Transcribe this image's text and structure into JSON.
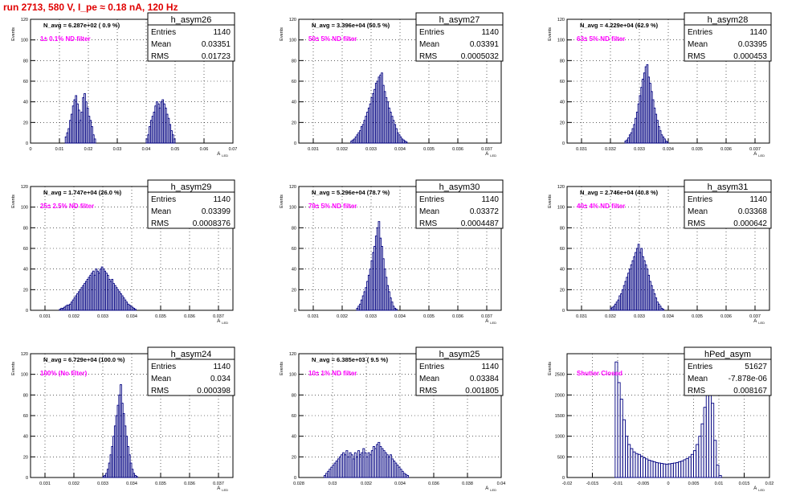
{
  "page": {
    "title": "run 2713,   580 V, I_pe ≈ 0.18 nA, 120 Hz"
  },
  "labels": {
    "y_axis": "Events",
    "x_axis": "A",
    "x_axis_sub": "LED"
  },
  "colors": {
    "histogram": "#000080",
    "annotation": "#ff00ff",
    "title": "#e00000",
    "grid": "#000000"
  },
  "chart_data": [
    {
      "type": "bar",
      "name": "h_asym26",
      "navg": "N_avg = 6.287e+02 ( 0.9 %)",
      "note": "1± 0.1% ND filter",
      "stats": {
        "entries": "1140",
        "mean": "0.03351",
        "rms": "0.01723"
      },
      "xlim": [
        0,
        0.07
      ],
      "ylim": [
        0,
        120
      ],
      "xticks": [
        "0",
        "0.01",
        "0.02",
        "0.03",
        "0.04",
        "0.05",
        "0.06",
        "0.07"
      ],
      "yticks": [
        "0",
        "20",
        "40",
        "60",
        "80",
        "100",
        "120"
      ],
      "grid": true,
      "x_start": 0.012,
      "bin_width": 0.0005,
      "values": [
        6,
        10,
        14,
        22,
        28,
        36,
        42,
        46,
        38,
        32,
        22,
        30,
        44,
        48,
        40,
        34,
        26,
        22,
        16,
        8,
        4,
        0,
        0,
        0,
        0,
        0,
        0,
        0,
        0,
        0,
        0,
        0,
        0,
        0,
        0,
        0,
        0,
        0,
        0,
        0,
        0,
        0,
        0,
        0,
        0,
        0,
        0,
        0,
        0,
        0,
        0,
        0,
        0,
        0,
        0,
        0,
        4,
        8,
        16,
        22,
        26,
        30,
        36,
        40,
        38,
        34,
        40,
        42,
        38,
        34,
        28,
        24,
        18,
        12,
        8,
        4
      ]
    },
    {
      "type": "bar",
      "name": "h_asym27",
      "navg": "N_avg = 3.396e+04 (50.5 %)",
      "note": "50± 5% ND filter",
      "stats": {
        "entries": "1140",
        "mean": "0.03391",
        "rms": "0.0005032"
      },
      "xlim": [
        0.0305,
        0.0375
      ],
      "ylim": [
        0,
        120
      ],
      "xticks": [
        "0.031",
        "0.032",
        "0.033",
        "0.034",
        "0.035",
        "0.036",
        "0.037"
      ],
      "yticks": [
        "0",
        "20",
        "40",
        "60",
        "80",
        "100",
        "120"
      ],
      "grid": true,
      "x_start": 0.0323,
      "bin_width": 5e-05,
      "values": [
        2,
        3,
        4,
        6,
        8,
        10,
        12,
        16,
        18,
        22,
        26,
        30,
        34,
        38,
        44,
        48,
        52,
        58,
        60,
        64,
        66,
        68,
        56,
        50,
        44,
        40,
        34,
        30,
        26,
        22,
        18,
        14,
        10,
        8,
        6,
        4,
        3,
        2,
        1
      ]
    },
    {
      "type": "bar",
      "name": "h_asym28",
      "navg": "N_avg = 4.229e+04 (62.9 %)",
      "note": "63± 5% ND filter",
      "stats": {
        "entries": "1140",
        "mean": "0.03395",
        "rms": "0.000453"
      },
      "xlim": [
        0.0305,
        0.0375
      ],
      "ylim": [
        0,
        120
      ],
      "xticks": [
        "0.031",
        "0.032",
        "0.033",
        "0.034",
        "0.035",
        "0.036",
        "0.037"
      ],
      "yticks": [
        "0",
        "20",
        "40",
        "60",
        "80",
        "100",
        "120"
      ],
      "grid": true,
      "x_start": 0.0325,
      "bin_width": 5e-05,
      "values": [
        2,
        3,
        5,
        8,
        10,
        14,
        18,
        24,
        30,
        38,
        46,
        54,
        62,
        68,
        74,
        76,
        64,
        58,
        50,
        42,
        34,
        28,
        22,
        16,
        12,
        8,
        6,
        4,
        2,
        1
      ]
    },
    {
      "type": "bar",
      "name": "h_asym29",
      "navg": "N_avg = 1.747e+04 (26.0 %)",
      "note": "25± 2.5% ND filter",
      "stats": {
        "entries": "1140",
        "mean": "0.03399",
        "rms": "0.0008376"
      },
      "xlim": [
        0.0305,
        0.0375
      ],
      "ylim": [
        0,
        120
      ],
      "xticks": [
        "0.031",
        "0.032",
        "0.033",
        "0.034",
        "0.035",
        "0.036",
        "0.037"
      ],
      "yticks": [
        "0",
        "20",
        "40",
        "60",
        "80",
        "100",
        "120"
      ],
      "grid": true,
      "x_start": 0.0315,
      "bin_width": 5e-05,
      "values": [
        1,
        2,
        2,
        3,
        4,
        5,
        5,
        6,
        8,
        10,
        12,
        14,
        16,
        18,
        20,
        22,
        24,
        26,
        28,
        30,
        32,
        34,
        36,
        38,
        34,
        40,
        38,
        36,
        40,
        42,
        40,
        38,
        36,
        34,
        30,
        28,
        30,
        26,
        24,
        22,
        20,
        18,
        16,
        14,
        12,
        10,
        8,
        6,
        5,
        4,
        3,
        2,
        1
      ]
    },
    {
      "type": "bar",
      "name": "h_asym30",
      "navg": "N_avg = 5.296e+04 (78.7 %)",
      "note": "79± 5% ND filter",
      "stats": {
        "entries": "1140",
        "mean": "0.03372",
        "rms": "0.0004487"
      },
      "xlim": [
        0.0305,
        0.0375
      ],
      "ylim": [
        0,
        120
      ],
      "xticks": [
        "0.031",
        "0.032",
        "0.033",
        "0.034",
        "0.035",
        "0.036",
        "0.037"
      ],
      "yticks": [
        "0",
        "20",
        "40",
        "60",
        "80",
        "100",
        "120"
      ],
      "grid": true,
      "x_start": 0.0325,
      "bin_width": 5e-05,
      "values": [
        2,
        4,
        6,
        10,
        14,
        18,
        22,
        28,
        34,
        40,
        48,
        56,
        62,
        72,
        80,
        86,
        70,
        62,
        50,
        40,
        32,
        24,
        18,
        12,
        8,
        4,
        2,
        1
      ]
    },
    {
      "type": "bar",
      "name": "h_asym31",
      "navg": "N_avg = 2.746e+04 (40.8 %)",
      "note": "40± 4% ND filter",
      "stats": {
        "entries": "1140",
        "mean": "0.03368",
        "rms": "0.000642"
      },
      "xlim": [
        0.0305,
        0.0375
      ],
      "ylim": [
        0,
        120
      ],
      "xticks": [
        "0.031",
        "0.032",
        "0.033",
        "0.034",
        "0.035",
        "0.036",
        "0.037"
      ],
      "yticks": [
        "0",
        "20",
        "40",
        "60",
        "80",
        "100",
        "120"
      ],
      "grid": true,
      "x_start": 0.032,
      "bin_width": 5e-05,
      "values": [
        2,
        3,
        4,
        6,
        8,
        10,
        14,
        16,
        20,
        24,
        28,
        32,
        36,
        40,
        44,
        48,
        52,
        56,
        60,
        64,
        56,
        60,
        52,
        48,
        44,
        40,
        34,
        28,
        24,
        20,
        16,
        12,
        8,
        6,
        4,
        2,
        1
      ]
    },
    {
      "type": "bar",
      "name": "h_asym24",
      "navg": "N_avg = 6.729e+04 (100.0 %)",
      "note": "100% (No filter)",
      "stats": {
        "entries": "1140",
        "mean": "0.034",
        "rms": "0.000398"
      },
      "xlim": [
        0.0305,
        0.0375
      ],
      "ylim": [
        0,
        120
      ],
      "xticks": [
        "0.031",
        "0.032",
        "0.033",
        "0.034",
        "0.035",
        "0.036",
        "0.037"
      ],
      "yticks": [
        "0",
        "20",
        "40",
        "60",
        "80",
        "100",
        "120"
      ],
      "grid": true,
      "x_start": 0.033,
      "bin_width": 5e-05,
      "values": [
        1,
        2,
        4,
        8,
        14,
        22,
        30,
        40,
        50,
        60,
        70,
        80,
        90,
        72,
        62,
        50,
        40,
        30,
        22,
        14,
        8,
        4,
        2,
        1
      ]
    },
    {
      "type": "bar",
      "name": "h_asym25",
      "navg": "N_avg = 6.385e+03 ( 9.5 %)",
      "note": "10± 1% ND filter",
      "stats": {
        "entries": "1140",
        "mean": "0.03384",
        "rms": "0.001805"
      },
      "xlim": [
        0.028,
        0.04
      ],
      "ylim": [
        0,
        120
      ],
      "xticks": [
        "0.028",
        "0.03",
        "0.032",
        "0.034",
        "0.036",
        "0.038",
        "0.04"
      ],
      "yticks": [
        "0",
        "20",
        "40",
        "60",
        "80",
        "100",
        "120"
      ],
      "grid": true,
      "x_start": 0.0295,
      "bin_width": 0.0001,
      "values": [
        2,
        4,
        6,
        8,
        10,
        12,
        14,
        16,
        18,
        20,
        22,
        24,
        22,
        26,
        20,
        24,
        22,
        18,
        24,
        20,
        26,
        22,
        24,
        28,
        24,
        20,
        24,
        22,
        26,
        30,
        28,
        32,
        34,
        30,
        28,
        26,
        24,
        22,
        20,
        22,
        18,
        16,
        14,
        12,
        10,
        8,
        6,
        4,
        3,
        2
      ]
    },
    {
      "type": "bar",
      "name": "hPed_asym",
      "navg": "",
      "note": "Shutter Closed",
      "stats": {
        "entries": "51627",
        "mean": "-7.878e-06",
        "rms": "0.008167"
      },
      "xlim": [
        -0.02,
        0.02
      ],
      "ylim": [
        0,
        3000
      ],
      "xticks": [
        "-0.02",
        "-0.015",
        "-0.01",
        "-0.005",
        "0",
        "0.005",
        "0.01",
        "0.015",
        "0.02"
      ],
      "yticks": [
        "0",
        "500",
        "1000",
        "1500",
        "2000",
        "2500"
      ],
      "grid": true,
      "x_start": -0.0105,
      "bin_width": 0.0005,
      "values": [
        2800,
        2300,
        1900,
        1400,
        1000,
        800,
        700,
        620,
        580,
        560,
        520,
        480,
        450,
        420,
        400,
        380,
        360,
        350,
        340,
        330,
        320,
        330,
        340,
        350,
        360,
        380,
        400,
        430,
        460,
        500,
        560,
        650,
        800,
        1000,
        1300,
        1700,
        2200,
        2600,
        1800,
        900,
        300,
        50
      ]
    }
  ]
}
